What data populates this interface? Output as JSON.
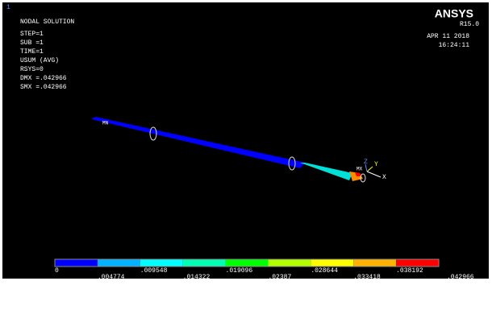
{
  "window": {
    "number": "1",
    "title": "NODAL SOLUTION",
    "info": [
      "STEP=1",
      "SUB =1",
      "TIME=1",
      "USUM      (AVG)",
      "RSYS=0",
      "DMX =.042966",
      "SMX =.042966"
    ],
    "logo": "ANSYS",
    "release": "R15.0",
    "date": "APR 11 2018",
    "time": "16:24:11"
  },
  "model": {
    "min_label": "MN",
    "max_label": "MX",
    "axes": [
      "Z",
      "Y",
      "X"
    ]
  },
  "legend": {
    "colors": [
      "#0000ff",
      "#00b2ff",
      "#00ffff",
      "#00ffb2",
      "#00ff00",
      "#b2ff00",
      "#ffff00",
      "#ffb200",
      "#ff0000"
    ],
    "labels": [
      "0",
      ".004774",
      ".009548",
      ".014322",
      ".019096",
      ".02387",
      ".028644",
      ".033418",
      ".038192",
      ".042966"
    ]
  }
}
